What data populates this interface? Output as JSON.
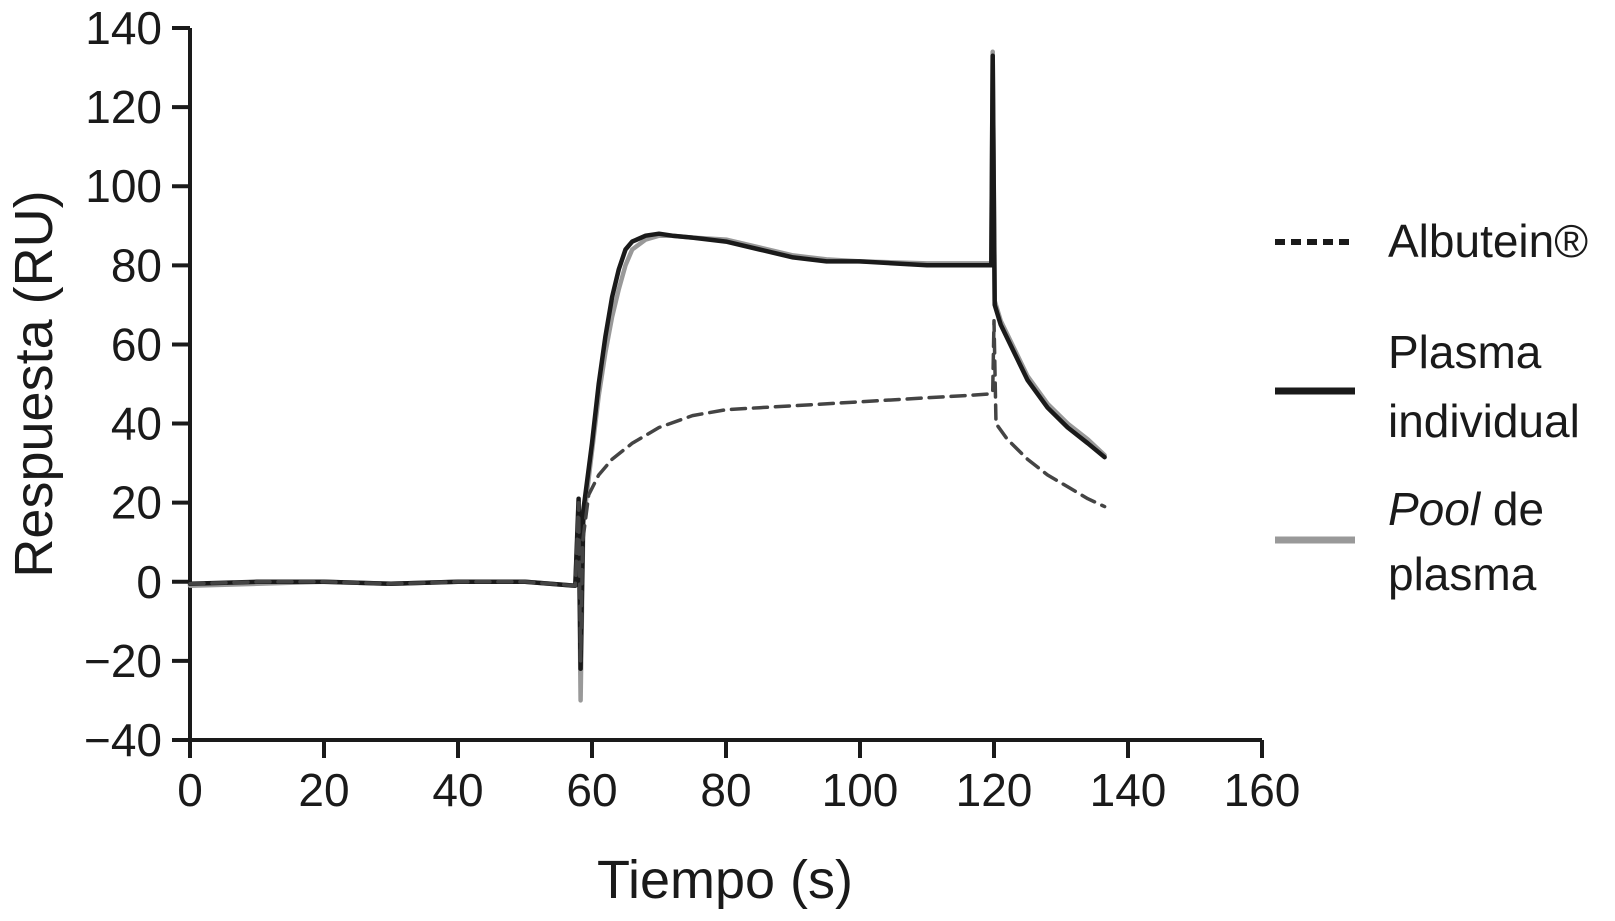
{
  "chart_data": {
    "type": "line",
    "title": "",
    "xlabel": "Tiempo (s)",
    "ylabel": "Respuesta (RU)",
    "xlim": [
      0,
      160
    ],
    "ylim": [
      -40,
      140
    ],
    "xticks": [
      "0",
      "20",
      "40",
      "60",
      "80",
      "100",
      "120",
      "140",
      "160"
    ],
    "yticks": [
      "140",
      "120",
      "100",
      "80",
      "60",
      "40",
      "20",
      "0",
      "−20",
      "−40"
    ],
    "grid": false,
    "legend_position": "right",
    "series": [
      {
        "key": "albutein",
        "name": "Albutein®",
        "legend_lines": [
          "Albutein®"
        ],
        "style": "dashed",
        "color": "#444444",
        "points": [
          [
            0,
            -0.5
          ],
          [
            10,
            0
          ],
          [
            20,
            0
          ],
          [
            30,
            -0.5
          ],
          [
            40,
            0
          ],
          [
            50,
            0
          ],
          [
            57.5,
            -1
          ],
          [
            58,
            20
          ],
          [
            58.3,
            -20
          ],
          [
            58.6,
            10
          ],
          [
            59.5,
            22
          ],
          [
            61,
            27
          ],
          [
            63,
            31
          ],
          [
            66,
            35
          ],
          [
            70,
            39
          ],
          [
            75,
            42
          ],
          [
            80,
            43.5
          ],
          [
            85,
            44
          ],
          [
            90,
            44.5
          ],
          [
            100,
            45.5
          ],
          [
            110,
            46.5
          ],
          [
            115,
            47
          ],
          [
            119.5,
            47.5
          ],
          [
            119.8,
            48
          ],
          [
            120,
            66
          ],
          [
            120.3,
            40
          ],
          [
            122,
            36
          ],
          [
            125,
            31
          ],
          [
            128,
            27
          ],
          [
            131,
            24
          ],
          [
            134,
            21
          ],
          [
            136.5,
            19
          ]
        ]
      },
      {
        "key": "plasma_individual",
        "name": "Plasma individual",
        "legend_lines": [
          "Plasma",
          "individual"
        ],
        "style": "solid",
        "color": "#1a1a1a",
        "points": [
          [
            0,
            -0.5
          ],
          [
            10,
            0
          ],
          [
            20,
            0
          ],
          [
            30,
            -0.5
          ],
          [
            40,
            0
          ],
          [
            50,
            0
          ],
          [
            57.5,
            -1
          ],
          [
            58,
            21
          ],
          [
            58.3,
            -22
          ],
          [
            58.7,
            18
          ],
          [
            60,
            35
          ],
          [
            61,
            50
          ],
          [
            62,
            62
          ],
          [
            63,
            72
          ],
          [
            64,
            79
          ],
          [
            65,
            84
          ],
          [
            66,
            86
          ],
          [
            68,
            87.5
          ],
          [
            70,
            88
          ],
          [
            72,
            87.5
          ],
          [
            75,
            87
          ],
          [
            80,
            86
          ],
          [
            85,
            84
          ],
          [
            90,
            82
          ],
          [
            95,
            81
          ],
          [
            100,
            81
          ],
          [
            110,
            80
          ],
          [
            115,
            80
          ],
          [
            119.6,
            80
          ],
          [
            119.8,
            133
          ],
          [
            120.1,
            70
          ],
          [
            121,
            65
          ],
          [
            123,
            58
          ],
          [
            125,
            51
          ],
          [
            128,
            44
          ],
          [
            131,
            39
          ],
          [
            134,
            35
          ],
          [
            136.5,
            31.5
          ]
        ]
      },
      {
        "key": "pool_plasma",
        "name": "Pool de plasma",
        "legend_lines": [
          "Pool de",
          "plasma"
        ],
        "style": "solid",
        "color": "#999999",
        "points": [
          [
            0,
            -1
          ],
          [
            10,
            -0.5
          ],
          [
            20,
            0
          ],
          [
            30,
            -0.5
          ],
          [
            40,
            0
          ],
          [
            50,
            0
          ],
          [
            57.5,
            -1
          ],
          [
            58,
            18
          ],
          [
            58.3,
            -30
          ],
          [
            58.7,
            15
          ],
          [
            60,
            33
          ],
          [
            61,
            47
          ],
          [
            62,
            58
          ],
          [
            63,
            67
          ],
          [
            64,
            74
          ],
          [
            65,
            80
          ],
          [
            66,
            84
          ],
          [
            68,
            86.5
          ],
          [
            70,
            87.5
          ],
          [
            72,
            87.5
          ],
          [
            75,
            87
          ],
          [
            80,
            86.5
          ],
          [
            85,
            84.5
          ],
          [
            90,
            82.5
          ],
          [
            95,
            81.5
          ],
          [
            100,
            81
          ],
          [
            110,
            80.5
          ],
          [
            115,
            80.5
          ],
          [
            119.6,
            80.5
          ],
          [
            119.8,
            134
          ],
          [
            120.1,
            71
          ],
          [
            121,
            66
          ],
          [
            123,
            59
          ],
          [
            125,
            52
          ],
          [
            128,
            45
          ],
          [
            131,
            40
          ],
          [
            134,
            36
          ],
          [
            136.5,
            32
          ]
        ]
      }
    ]
  }
}
